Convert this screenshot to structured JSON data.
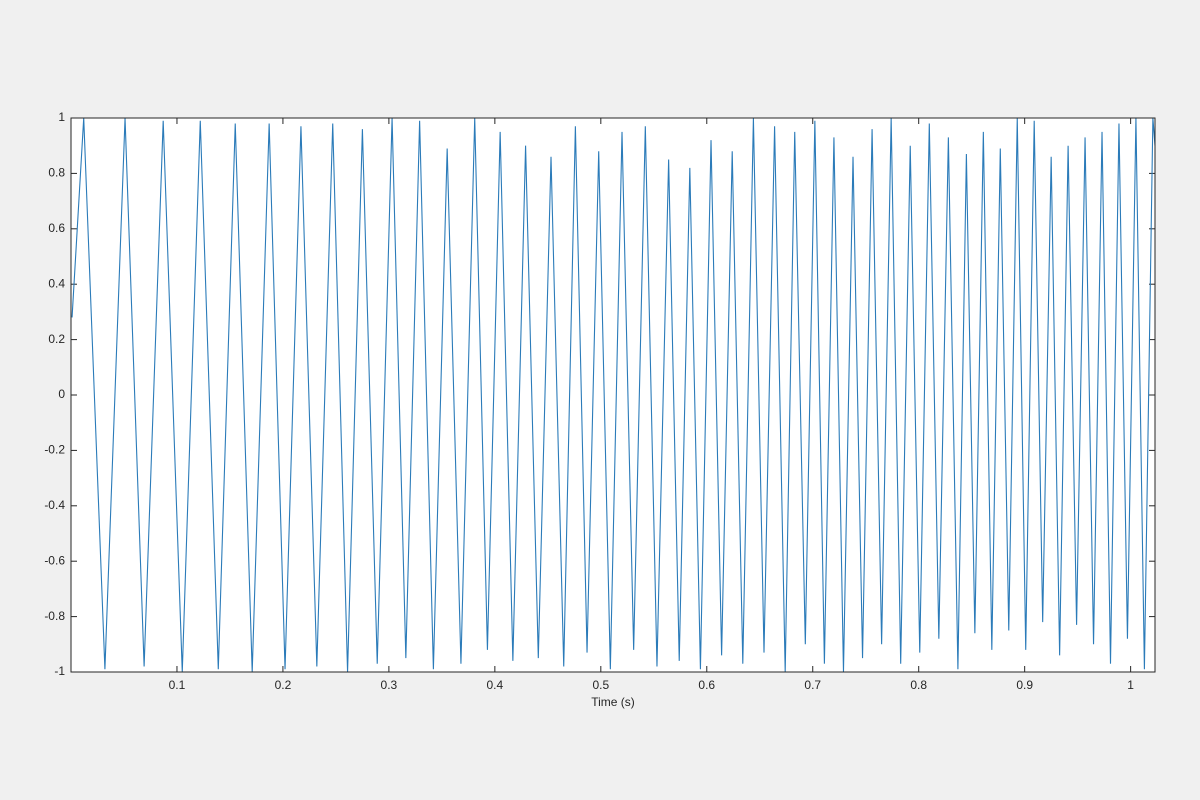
{
  "chart_data": {
    "type": "line",
    "xlabel": "Time (s)",
    "color": "#2b7bb9",
    "x": [
      0.001,
      0.012,
      0.032,
      0.051,
      0.069,
      0.087,
      0.105,
      0.122,
      0.139,
      0.155,
      0.171,
      0.187,
      0.202,
      0.217,
      0.232,
      0.247,
      0.261,
      0.275,
      0.289,
      0.303,
      0.316,
      0.329,
      0.342,
      0.355,
      0.368,
      0.381,
      0.393,
      0.405,
      0.417,
      0.429,
      0.441,
      0.453,
      0.465,
      0.476,
      0.487,
      0.498,
      0.509,
      0.52,
      0.531,
      0.542,
      0.553,
      0.564,
      0.574,
      0.584,
      0.594,
      0.604,
      0.614,
      0.624,
      0.634,
      0.644,
      0.654,
      0.664,
      0.674,
      0.683,
      0.693,
      0.702,
      0.711,
      0.72,
      0.729,
      0.738,
      0.747,
      0.756,
      0.765,
      0.774,
      0.783,
      0.792,
      0.801,
      0.81,
      0.819,
      0.828,
      0.837,
      0.845,
      0.853,
      0.861,
      0.869,
      0.877,
      0.885,
      0.893,
      0.901,
      0.909,
      0.917,
      0.925,
      0.933,
      0.941,
      0.949,
      0.957,
      0.965,
      0.973,
      0.981,
      0.989,
      0.997,
      1.005,
      1.013,
      1.021,
      1.023
    ],
    "values": [
      0.28,
      1,
      -0.99,
      1,
      -0.98,
      0.99,
      -1,
      0.99,
      -0.99,
      0.98,
      -1,
      0.98,
      -0.99,
      0.97,
      -0.98,
      0.98,
      -1,
      0.96,
      -0.97,
      1,
      -0.95,
      0.99,
      -0.99,
      0.89,
      -0.97,
      1,
      -0.92,
      0.95,
      -0.96,
      0.9,
      -0.95,
      0.86,
      -0.98,
      0.97,
      -0.93,
      0.88,
      -0.99,
      0.95,
      -0.92,
      0.97,
      -0.98,
      0.85,
      -0.96,
      0.82,
      -0.99,
      0.92,
      -0.94,
      0.88,
      -0.97,
      1,
      -0.93,
      0.97,
      -1,
      0.95,
      -0.9,
      0.99,
      -0.97,
      0.93,
      -1,
      0.86,
      -0.95,
      0.96,
      -0.9,
      1,
      -0.97,
      0.9,
      -0.93,
      0.98,
      -0.88,
      0.93,
      -0.99,
      0.87,
      -0.86,
      0.95,
      -0.92,
      0.89,
      -0.85,
      1,
      -0.92,
      0.99,
      -0.82,
      0.86,
      -0.94,
      0.9,
      -0.83,
      0.93,
      -0.9,
      0.95,
      -0.97,
      0.98,
      -0.88,
      1,
      -0.99,
      1,
      0.9
    ],
    "xlim": [
      0,
      1.023
    ],
    "ylim": [
      -1,
      1
    ],
    "xticks": [
      0.1,
      0.2,
      0.3,
      0.4,
      0.5,
      0.6,
      0.7,
      0.8,
      0.9,
      1
    ],
    "yticks": [
      -1,
      -0.8,
      -0.6,
      -0.4,
      -0.2,
      0,
      0.2,
      0.4,
      0.6,
      0.8,
      1
    ]
  }
}
